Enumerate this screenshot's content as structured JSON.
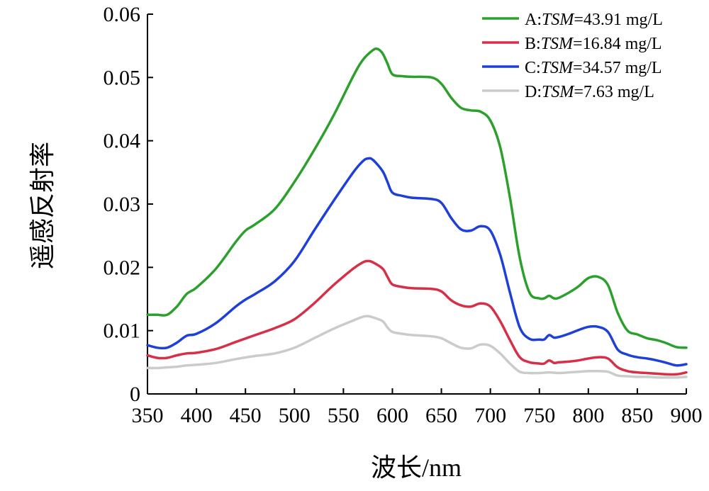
{
  "chart_data": {
    "type": "line",
    "xlabel": "波长/nm",
    "ylabel": "遥感反射率",
    "xlim": [
      350,
      900
    ],
    "ylim": [
      0,
      0.06
    ],
    "x_ticks": [
      "350",
      "400",
      "450",
      "500",
      "550",
      "600",
      "650",
      "700",
      "750",
      "800",
      "850",
      "900"
    ],
    "y_ticks": [
      "0",
      "0.01",
      "0.02",
      "0.03",
      "0.04",
      "0.05",
      "0.06"
    ],
    "grid": false,
    "legend_position": "top-right",
    "series": [
      {
        "label_prefix": "A:",
        "label_italic": "TSM",
        "label_suffix": "=43.91 mg/L",
        "color": "#2ca02c",
        "x": [
          350,
          360,
          370,
          380,
          390,
          400,
          420,
          440,
          450,
          460,
          480,
          500,
          520,
          540,
          560,
          570,
          580,
          585,
          590,
          595,
          600,
          610,
          620,
          640,
          650,
          660,
          670,
          680,
          690,
          700,
          710,
          720,
          730,
          740,
          750,
          755,
          760,
          765,
          770,
          780,
          790,
          800,
          810,
          820,
          830,
          840,
          850,
          860,
          870,
          880,
          890,
          900
        ],
        "y": [
          0.0125,
          0.0125,
          0.0125,
          0.0138,
          0.0158,
          0.0168,
          0.0198,
          0.024,
          0.0258,
          0.0268,
          0.0292,
          0.0335,
          0.0385,
          0.044,
          0.0502,
          0.0528,
          0.0543,
          0.0545,
          0.0538,
          0.0522,
          0.0505,
          0.0502,
          0.0501,
          0.05,
          0.049,
          0.0468,
          0.0452,
          0.0448,
          0.0446,
          0.0432,
          0.039,
          0.031,
          0.0215,
          0.016,
          0.0151,
          0.0151,
          0.0155,
          0.0151,
          0.0152,
          0.016,
          0.017,
          0.0183,
          0.0185,
          0.0172,
          0.0128,
          0.01,
          0.0094,
          0.0088,
          0.0085,
          0.008,
          0.0074,
          0.0073
        ]
      },
      {
        "label_prefix": "B:",
        "label_italic": "TSM",
        "label_suffix": "=16.84 mg/L",
        "color": "#d62f47",
        "x": [
          350,
          360,
          370,
          380,
          390,
          400,
          420,
          440,
          460,
          480,
          500,
          520,
          540,
          560,
          570,
          575,
          580,
          590,
          595,
          600,
          610,
          620,
          640,
          650,
          660,
          670,
          680,
          690,
          700,
          710,
          720,
          730,
          740,
          750,
          755,
          760,
          765,
          770,
          780,
          790,
          800,
          810,
          820,
          830,
          840,
          850,
          860,
          870,
          880,
          890,
          900
        ],
        "y": [
          0.0061,
          0.0057,
          0.0057,
          0.0061,
          0.0064,
          0.0065,
          0.0071,
          0.0082,
          0.0093,
          0.0104,
          0.0118,
          0.0143,
          0.0172,
          0.0198,
          0.0208,
          0.021,
          0.0208,
          0.0198,
          0.0185,
          0.0173,
          0.0169,
          0.0167,
          0.0166,
          0.0162,
          0.0148,
          0.014,
          0.0138,
          0.0143,
          0.0138,
          0.0115,
          0.0085,
          0.0058,
          0.005,
          0.0048,
          0.0048,
          0.0053,
          0.0049,
          0.005,
          0.0051,
          0.0053,
          0.0056,
          0.0058,
          0.0056,
          0.0042,
          0.0036,
          0.0034,
          0.0033,
          0.0032,
          0.0031,
          0.0031,
          0.0034
        ]
      },
      {
        "label_prefix": "C:",
        "label_italic": "TSM",
        "label_suffix": "=34.57 mg/L",
        "color": "#1f3fd9",
        "x": [
          350,
          360,
          370,
          380,
          390,
          400,
          420,
          440,
          450,
          460,
          480,
          500,
          520,
          540,
          560,
          570,
          575,
          580,
          590,
          595,
          600,
          610,
          620,
          640,
          650,
          660,
          670,
          680,
          690,
          700,
          710,
          720,
          730,
          740,
          750,
          755,
          760,
          765,
          770,
          780,
          790,
          800,
          810,
          820,
          830,
          840,
          850,
          860,
          870,
          880,
          890,
          900
        ],
        "y": [
          0.0077,
          0.0073,
          0.0073,
          0.0081,
          0.0092,
          0.0095,
          0.0112,
          0.0138,
          0.0149,
          0.0158,
          0.0178,
          0.021,
          0.0258,
          0.0305,
          0.035,
          0.0368,
          0.0372,
          0.037,
          0.0352,
          0.0335,
          0.0318,
          0.0313,
          0.031,
          0.0308,
          0.0302,
          0.0278,
          0.026,
          0.0258,
          0.0265,
          0.0258,
          0.022,
          0.016,
          0.0105,
          0.0087,
          0.0086,
          0.0086,
          0.0093,
          0.0089,
          0.009,
          0.0095,
          0.0101,
          0.0106,
          0.0106,
          0.0098,
          0.007,
          0.0062,
          0.0058,
          0.0056,
          0.0053,
          0.0049,
          0.0045,
          0.0047
        ]
      },
      {
        "label_prefix": "D:",
        "label_italic": "TSM",
        "label_suffix": "=7.63 mg/L",
        "color": "#c8ccca",
        "x": [
          350,
          360,
          370,
          380,
          390,
          400,
          420,
          440,
          460,
          480,
          500,
          520,
          540,
          560,
          570,
          575,
          580,
          590,
          595,
          600,
          610,
          620,
          640,
          650,
          660,
          670,
          680,
          690,
          700,
          710,
          720,
          730,
          740,
          750,
          760,
          770,
          780,
          790,
          800,
          810,
          820,
          830,
          840,
          850,
          860,
          870,
          880,
          890,
          900
        ],
        "y": [
          0.0041,
          0.0041,
          0.0042,
          0.0043,
          0.0045,
          0.0046,
          0.0049,
          0.0055,
          0.006,
          0.0064,
          0.0073,
          0.0088,
          0.0103,
          0.0116,
          0.0122,
          0.0123,
          0.0121,
          0.0115,
          0.0105,
          0.0098,
          0.0095,
          0.0093,
          0.0091,
          0.0088,
          0.008,
          0.0073,
          0.0072,
          0.0078,
          0.0076,
          0.0064,
          0.0048,
          0.0035,
          0.0033,
          0.0033,
          0.0034,
          0.0033,
          0.0034,
          0.0035,
          0.0036,
          0.0036,
          0.0035,
          0.0029,
          0.0028,
          0.0027,
          0.0027,
          0.0026,
          0.0026,
          0.0026,
          0.0027
        ]
      }
    ]
  }
}
